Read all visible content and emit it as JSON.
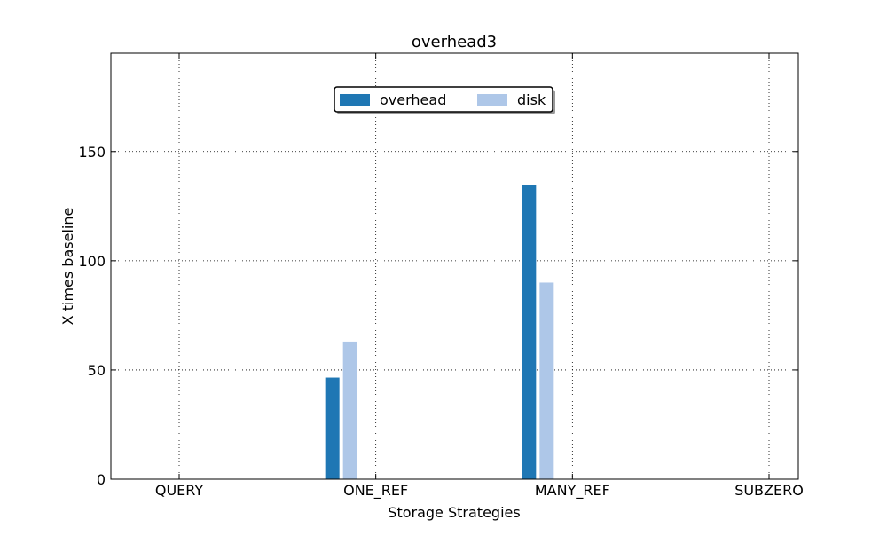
{
  "chart_data": {
    "type": "bar",
    "title": "overhead3",
    "xlabel": "Storage Strategies",
    "ylabel": "X times baseline",
    "categories": [
      "QUERY",
      "ONE_REF",
      "MANY_REF",
      "SUBZERO"
    ],
    "series": [
      {
        "name": "overhead",
        "color": "#1f77b4",
        "values": [
          0,
          46.5,
          134.5,
          0
        ]
      },
      {
        "name": "disk",
        "color": "#aec7e8",
        "values": [
          0,
          63,
          90,
          0
        ]
      }
    ],
    "ylim": [
      0,
      195
    ],
    "yticks": [
      0,
      50,
      100,
      150
    ],
    "grid": true,
    "legend_position": "upper center"
  }
}
